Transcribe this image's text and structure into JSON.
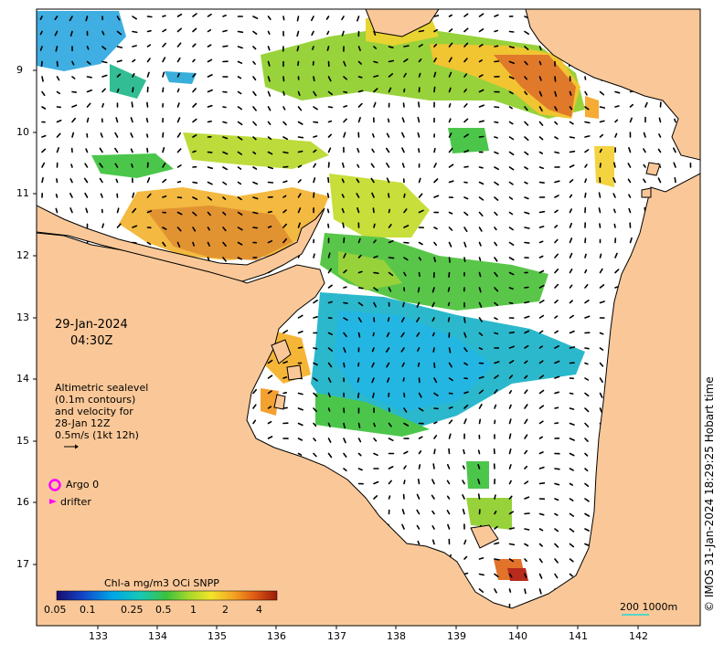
{
  "map": {
    "date": "29-Jan-2024",
    "time": "04:30Z",
    "legend_lines": [
      "Altimetric sealevel",
      "(0.1m contours)",
      "and velocity for",
      "28-Jan 12Z",
      "0.5m/s (1kt 12h)"
    ],
    "argo_label": "Argo 0",
    "drifter_label": "drifter",
    "credit": "© IMOS 31-Jan-2024 18:29:25 Hobart time",
    "scale_label": "200  1000m",
    "colorbar_title": "Chl-a mg/m3 OCi SNPP",
    "colorbar_ticks": [
      "0.05",
      "0.1",
      "0.25",
      "0.5",
      "1",
      "2",
      "4"
    ],
    "y_ticks": [
      "9",
      "10",
      "11",
      "12",
      "13",
      "14",
      "15",
      "16",
      "17"
    ],
    "x_ticks": [
      "133",
      "134",
      "135",
      "136",
      "137",
      "138",
      "139",
      "140",
      "141",
      "142"
    ],
    "colors": {
      "land": "#fac898",
      "ocean": "#ffffff",
      "argo": "#ff00ff",
      "scale_bar": "#55d4c8"
    }
  }
}
